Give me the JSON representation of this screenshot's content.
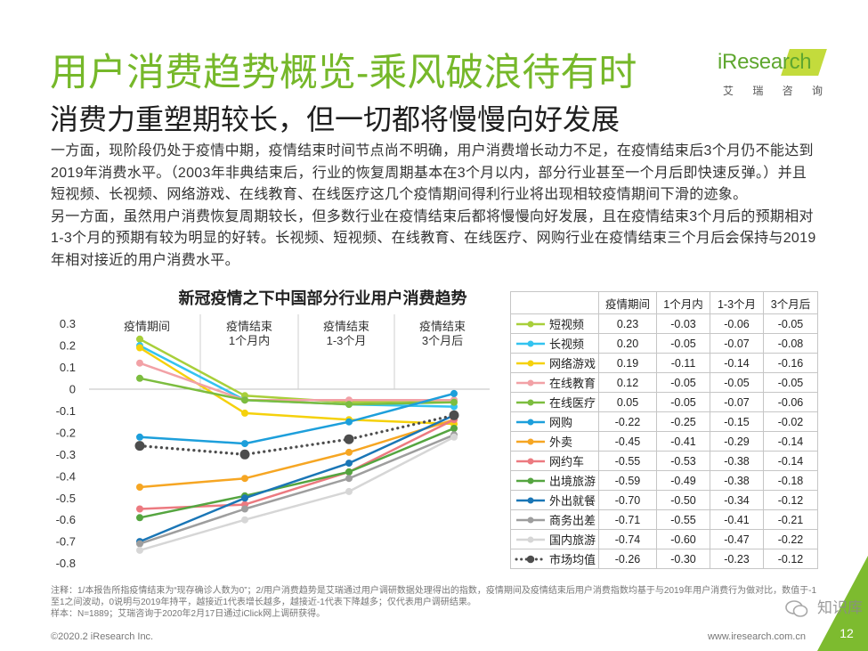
{
  "header": {
    "title": "用户消费趋势概览-乘风破浪待有时",
    "subtitle": "消费力重塑期较长，但一切都将慢慢向好发展"
  },
  "logo": {
    "brand": "iResearch",
    "cn": [
      "艾",
      "瑞",
      "咨",
      "询"
    ]
  },
  "body": {
    "lines": [
      "一方面，现阶段仍处于疫情中期，疫情结束时间节点尚不明确，用户消费增长动力不足，在疫情结束后3个月仍不能达到",
      "2019年消费水平。（2003年非典结束后，行业的恢复周期基本在3个月以内，部分行业甚至一个月后即快速反弹。）并且",
      "短视频、长视频、网络游戏、在线教育、在线医疗这几个疫情期间得利行业将出现相较疫情期间下滑的迹象。",
      "另一方面，虽然用户消费恢复周期较长，但多数行业在疫情结束后都将慢慢向好发展，且在疫情结束3个月后的预期相对",
      "1-3个月的预期有较为明显的好转。长视频、短视频、在线教育、在线医疗、网购行业在疫情结束三个月后会保持与2019",
      "年相对接近的用户消费水平。"
    ]
  },
  "chart_data": {
    "type": "line",
    "title": "新冠疫情之下中国部分行业用户消费趋势",
    "category_lines": [
      [
        "疫情期间"
      ],
      [
        "疫情结束",
        "1个月内"
      ],
      [
        "疫情结束",
        "1-3个月"
      ],
      [
        "疫情结束",
        "3个月后"
      ]
    ],
    "ylim": [
      -0.8,
      0.3
    ],
    "yticks": [
      0.3,
      0.2,
      0.1,
      0,
      -0.1,
      -0.2,
      -0.3,
      -0.4,
      -0.5,
      -0.6,
      -0.7,
      -0.8
    ],
    "grid": false,
    "legend": "right-table",
    "series": [
      {
        "name": "短视频",
        "color": "#A8CF3A",
        "values": [
          0.23,
          -0.03,
          -0.06,
          -0.05
        ]
      },
      {
        "name": "长视频",
        "color": "#33C3F0",
        "values": [
          0.2,
          -0.05,
          -0.07,
          -0.08
        ]
      },
      {
        "name": "网络游戏",
        "color": "#F5D10C",
        "values": [
          0.19,
          -0.11,
          -0.14,
          -0.16
        ]
      },
      {
        "name": "在线教育",
        "color": "#F2A1A6",
        "values": [
          0.12,
          -0.05,
          -0.05,
          -0.05
        ]
      },
      {
        "name": "在线医疗",
        "color": "#7CBD3F",
        "values": [
          0.05,
          -0.05,
          -0.07,
          -0.06
        ]
      },
      {
        "name": "网购",
        "color": "#1D9FDB",
        "values": [
          -0.22,
          -0.25,
          -0.15,
          -0.02
        ]
      },
      {
        "name": "外卖",
        "color": "#F6A623",
        "values": [
          -0.45,
          -0.41,
          -0.29,
          -0.14
        ]
      },
      {
        "name": "网约车",
        "color": "#EC7A80",
        "values": [
          -0.55,
          -0.53,
          -0.38,
          -0.14
        ]
      },
      {
        "name": "出境旅游",
        "color": "#55A540",
        "values": [
          -0.59,
          -0.49,
          -0.38,
          -0.18
        ]
      },
      {
        "name": "外出就餐",
        "color": "#1A76B6",
        "values": [
          -0.7,
          -0.5,
          -0.34,
          -0.12
        ]
      },
      {
        "name": "商务出差",
        "color": "#9E9E9E",
        "values": [
          -0.71,
          -0.55,
          -0.41,
          -0.21
        ]
      },
      {
        "name": "国内旅游",
        "color": "#D6D6D6",
        "values": [
          -0.74,
          -0.6,
          -0.47,
          -0.22
        ]
      },
      {
        "name": "市场均值",
        "color": "#4D4D4D",
        "dotted": true,
        "values": [
          -0.26,
          -0.3,
          -0.23,
          -0.12
        ]
      }
    ]
  },
  "table": {
    "headers": [
      "疫情期间",
      "1个月内",
      "1-3个月",
      "3个月后"
    ]
  },
  "footer": {
    "note": "注释：1/本报告所指疫情结束为“现存确诊人数为0”；2/用户消费趋势是艾瑞通过用户调研数据处理得出的指数，疫情期间及疫情结束后用户消费指数均基于与2019年用户消费行为做对比，数值于-1至1之间波动，0说明与2019年持平，越接近1代表增长越多，越接近-1代表下降越多；仅代表用户调研结果。",
    "sample": "样本：N=1889；艾瑞咨询于2020年2月17日通过iClick网上调研获得。",
    "copyright": "©2020.2 iResearch Inc.",
    "website": "www.iresearch.com.cn",
    "page_number": "12"
  },
  "watermark": {
    "text": "知识库",
    "icon": "wechat-icon"
  },
  "colors": {
    "accent": "#76B82A",
    "corner": "#7DBB2F"
  }
}
